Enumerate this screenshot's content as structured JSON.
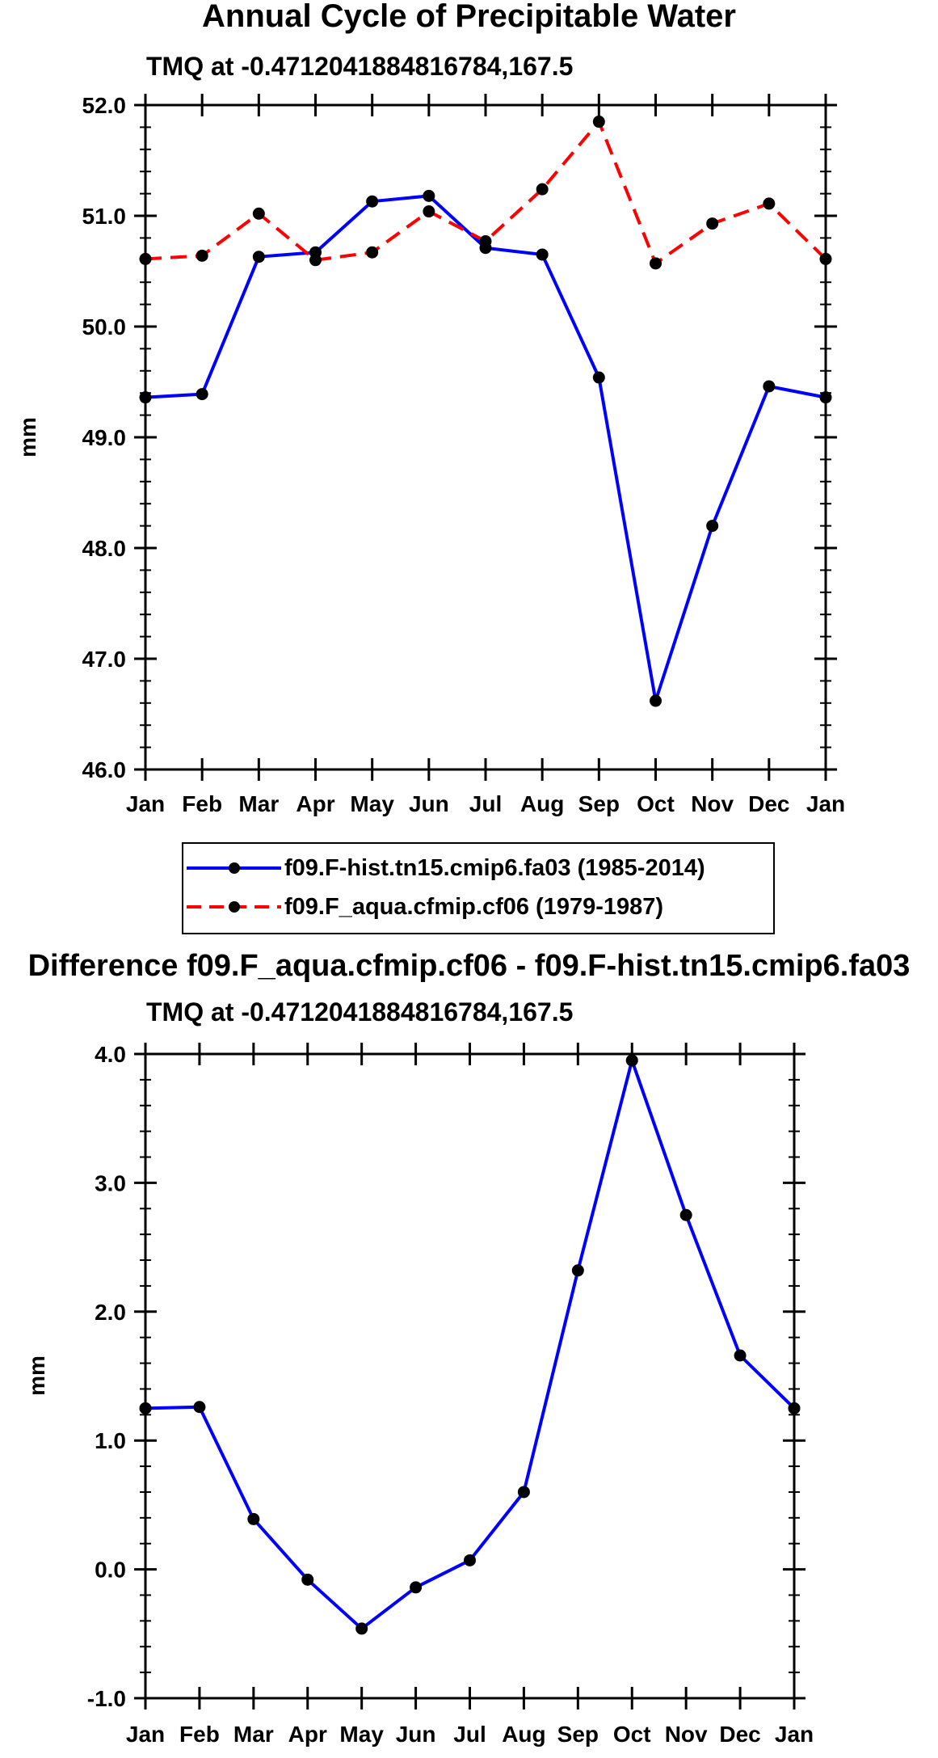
{
  "page": {
    "title": "Annual Cycle of Precipitable Water"
  },
  "colors": {
    "series1": "#0000ff",
    "series2": "#ff0000",
    "diff": "#0000ff",
    "marker": "#000000"
  },
  "chart_data": [
    {
      "type": "line",
      "subtitle": "TMQ at -0.4712041884816784,167.5",
      "ylabel": "mm",
      "xlabel": "",
      "categories": [
        "Jan",
        "Feb",
        "Mar",
        "Apr",
        "May",
        "Jun",
        "Jul",
        "Aug",
        "Sep",
        "Oct",
        "Nov",
        "Dec",
        "Jan"
      ],
      "ylim": [
        46.0,
        52.0
      ],
      "yticks": [
        "46.0",
        "47.0",
        "48.0",
        "49.0",
        "50.0",
        "51.0",
        "52.0"
      ],
      "grid": false,
      "legend_position": "below",
      "series": [
        {
          "name": "f09.F-hist.tn15.cmip6.fa03 (1985-2014)",
          "style": "solid",
          "values": [
            49.36,
            49.39,
            50.63,
            50.67,
            51.13,
            51.18,
            50.71,
            50.65,
            49.54,
            46.62,
            48.2,
            49.46,
            49.36
          ]
        },
        {
          "name": "f09.F_aqua.cfmip.cf06 (1979-1987)",
          "style": "dashed",
          "values": [
            50.61,
            50.64,
            51.02,
            50.6,
            50.67,
            51.04,
            50.77,
            51.24,
            51.85,
            50.57,
            50.93,
            51.11,
            50.61
          ]
        }
      ]
    },
    {
      "type": "line",
      "title": "Difference f09.F_aqua.cfmip.cf06 - f09.F-hist.tn15.cmip6.fa03",
      "subtitle": "TMQ at -0.4712041884816784,167.5",
      "ylabel": "mm",
      "xlabel": "",
      "categories": [
        "Jan",
        "Feb",
        "Mar",
        "Apr",
        "May",
        "Jun",
        "Jul",
        "Aug",
        "Sep",
        "Oct",
        "Nov",
        "Dec",
        "Jan"
      ],
      "ylim": [
        -1.0,
        4.0
      ],
      "yticks": [
        "-1.0",
        "0.0",
        "1.0",
        "2.0",
        "3.0",
        "4.0"
      ],
      "grid": false,
      "series": [
        {
          "style": "solid",
          "values": [
            1.25,
            1.26,
            0.39,
            -0.08,
            -0.46,
            -0.14,
            0.07,
            0.6,
            2.32,
            3.95,
            2.75,
            1.66,
            1.25
          ]
        }
      ]
    }
  ]
}
